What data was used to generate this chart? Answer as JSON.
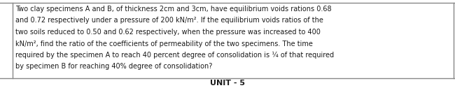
{
  "lines": [
    "Two clay specimens A and B, of thickness 2cm and 3cm, have equilibrium voids rations 0.68",
    "and 0.72 respectively under a pressure of 200 kN/m². If the equilibrium voids ratios of the",
    "two soils reduced to 0.50 and 0.62 respectively, when the pressure was increased to 400",
    "kN/m², find the ratio of the coefficients of permeability of the two specimens. The time",
    "required by the specimen A to reach 40 percent degree of consolidation is ¼ of that required",
    "by specimen B for reaching 40% degree of consolidation?"
  ],
  "footer": "UNIT - 5",
  "bg_color": "#ffffff",
  "text_color": "#1a1a1a",
  "border_color": "#888888",
  "font_size": 7.0,
  "footer_font_size": 8.0,
  "figwidth": 6.5,
  "figheight": 1.26,
  "dpi": 100
}
